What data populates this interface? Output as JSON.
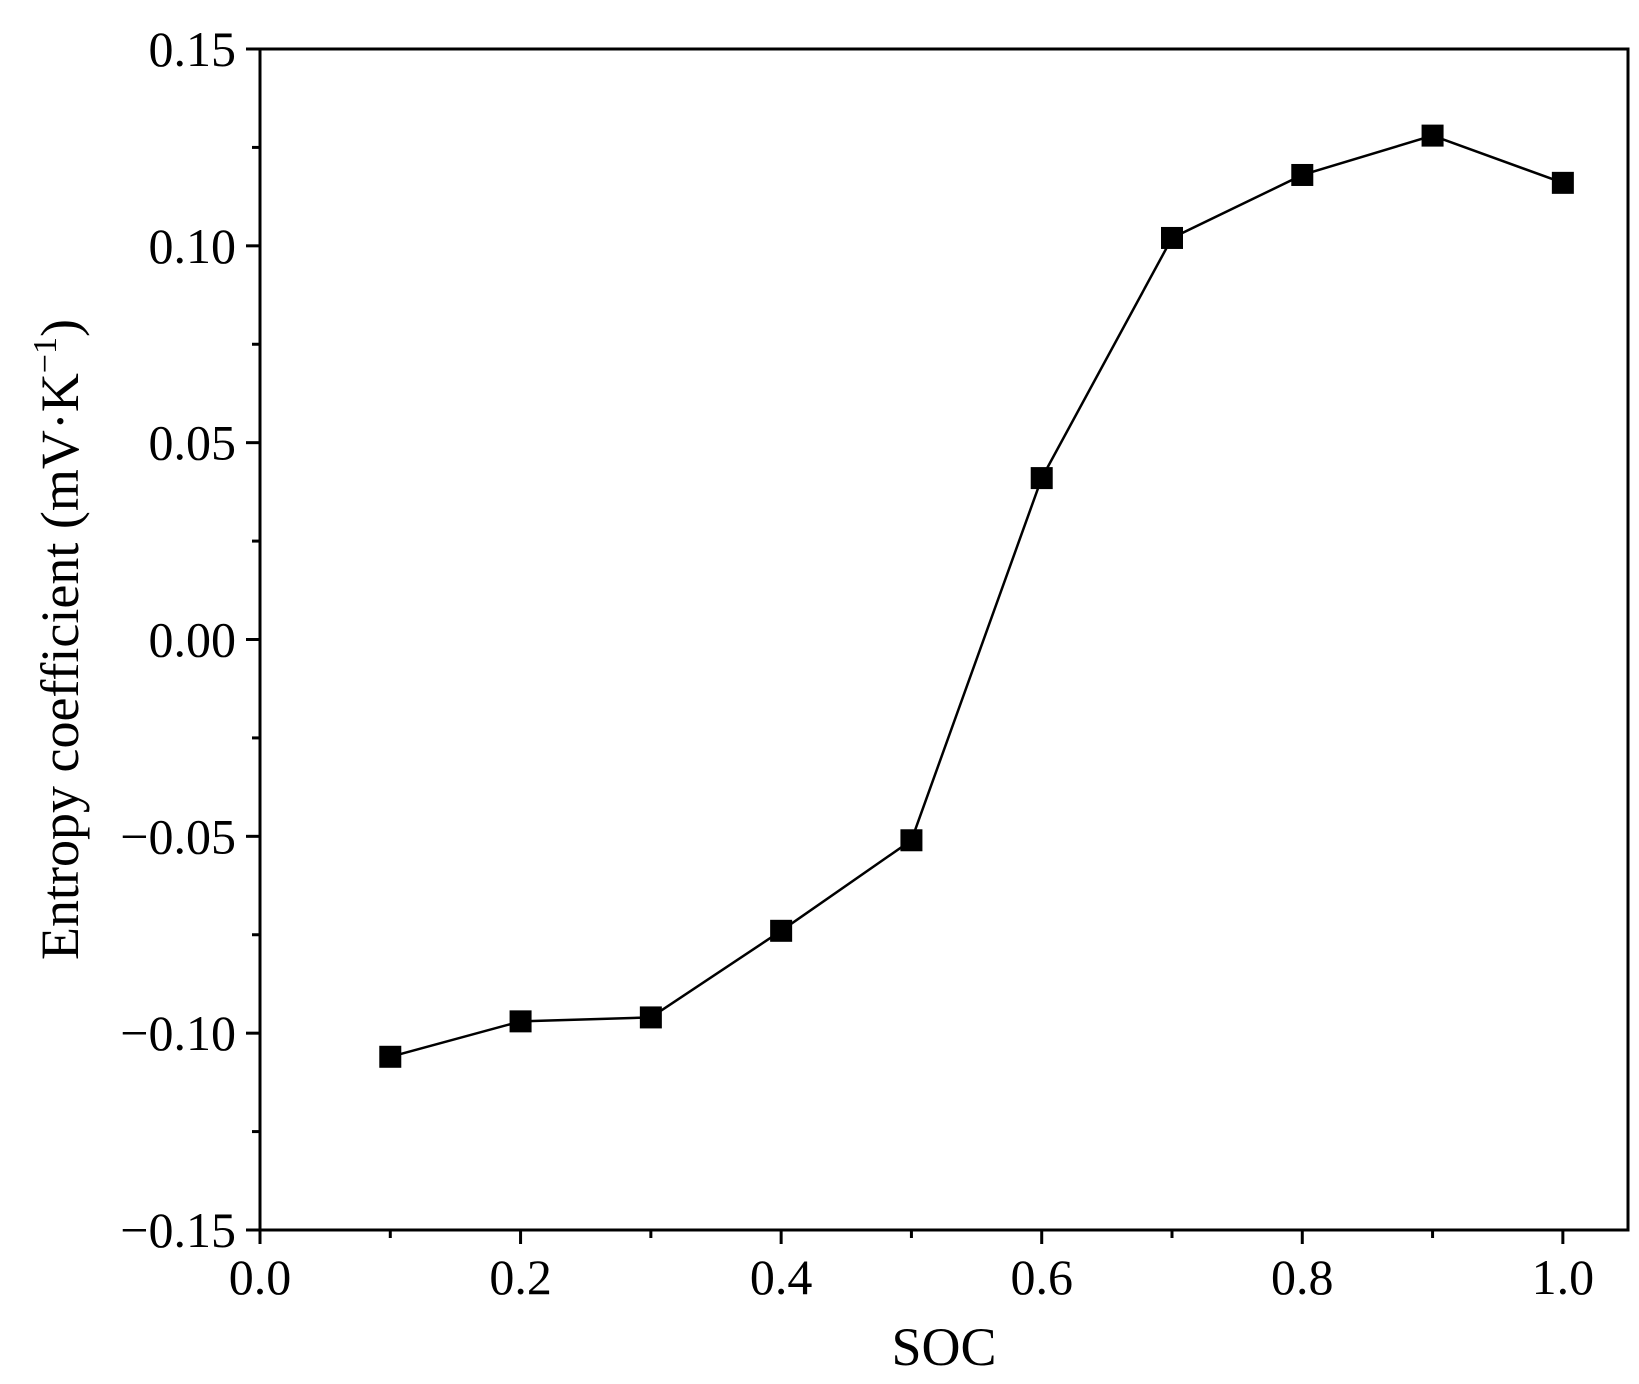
{
  "chart_data": {
    "type": "line",
    "xlabel": "SOC",
    "ylabel": "Entropy coefficient (mV·K",
    "ylabel_superscript": "−1",
    "ylabel_close": ")",
    "xlim": [
      0.0,
      1.05
    ],
    "ylim": [
      -0.15,
      0.15
    ],
    "xticks": [
      0.0,
      0.2,
      0.4,
      0.6,
      0.8,
      1.0
    ],
    "xtick_labels": [
      "0.0",
      "0.2",
      "0.4",
      "0.6",
      "0.8",
      "1.0"
    ],
    "yticks": [
      -0.15,
      -0.1,
      -0.05,
      0.0,
      0.05,
      0.1,
      0.15
    ],
    "ytick_labels": [
      "−0.15",
      "−0.10",
      "−0.05",
      "0.00",
      "0.05",
      "0.10",
      "0.15"
    ],
    "grid": false,
    "marker": "square",
    "colors": {
      "line": "#000000",
      "marker": "#000000"
    },
    "series": [
      {
        "x": [
          0.1,
          0.2,
          0.3,
          0.4,
          0.5,
          0.6,
          0.7,
          0.8,
          0.9,
          1.0
        ],
        "y": [
          -0.106,
          -0.097,
          -0.096,
          -0.074,
          -0.051,
          0.041,
          0.102,
          0.118,
          0.128,
          0.116
        ]
      }
    ]
  }
}
